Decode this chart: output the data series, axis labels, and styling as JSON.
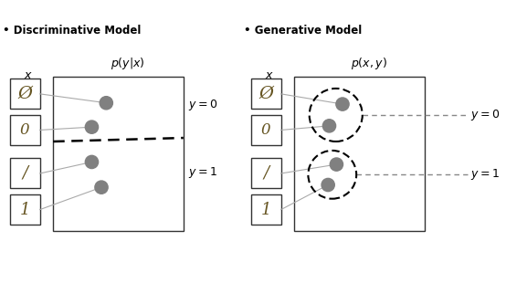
{
  "title_disc": "Discriminative Model",
  "title_gen": "Generative Model",
  "formula_disc": "$p(y|x)$",
  "formula_gen": "$p(x, y)$",
  "label_x": "$x$",
  "dot_color": "#808080",
  "box_color": "#333333",
  "bg_color": "#ffffff"
}
